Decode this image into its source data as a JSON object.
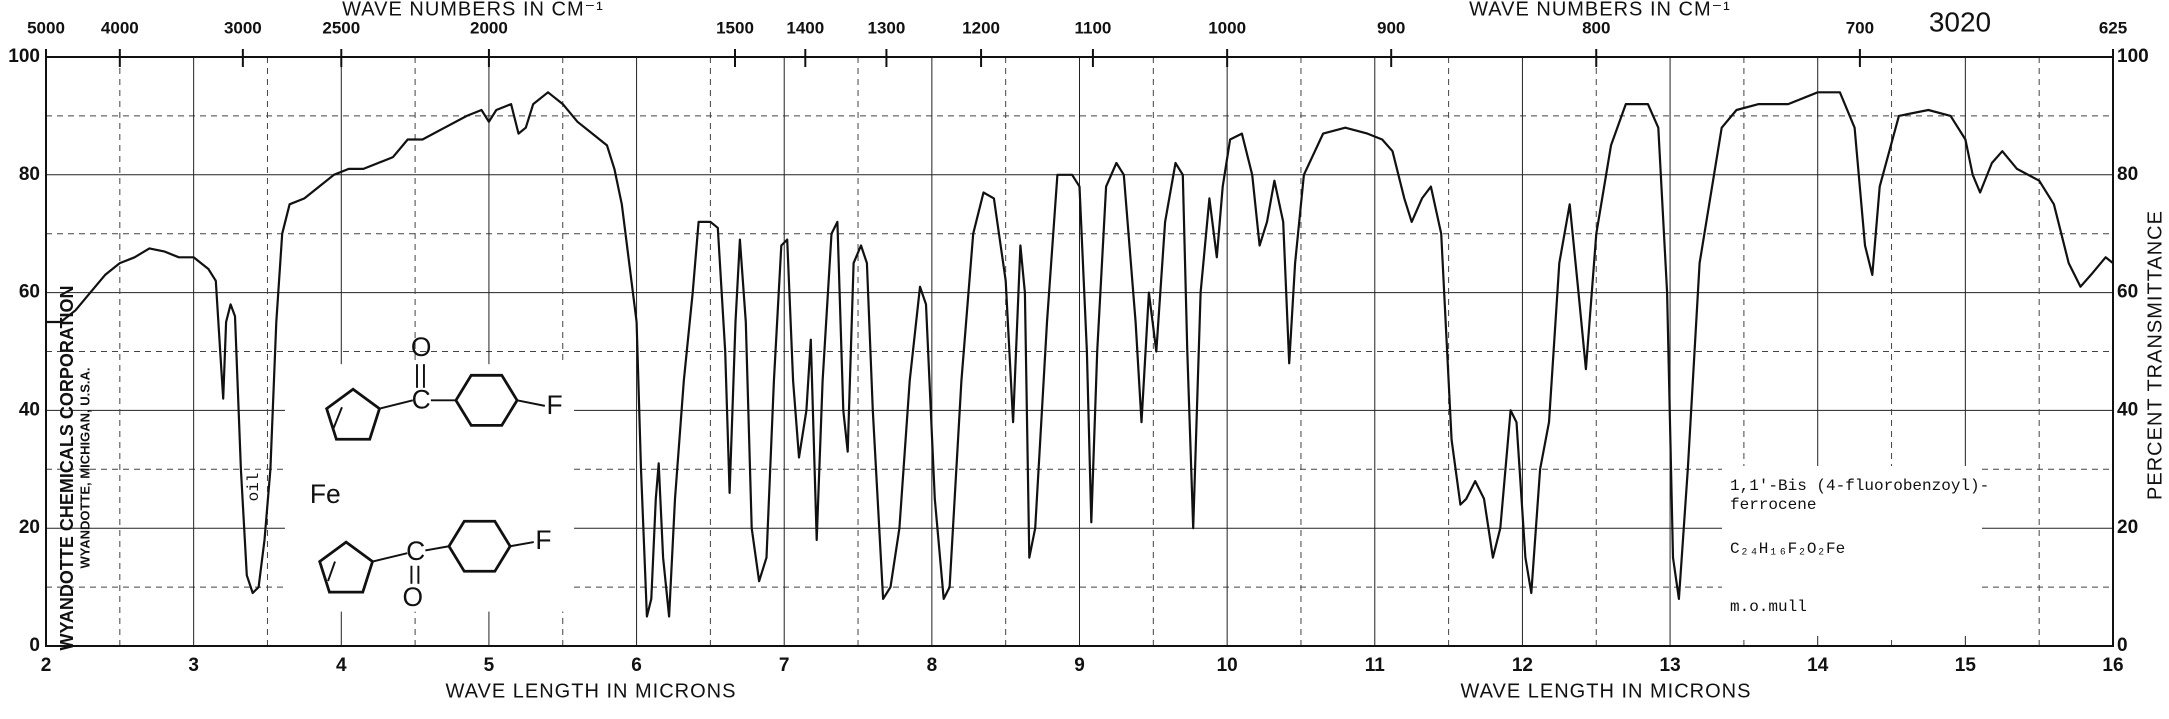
{
  "chart_data": {
    "type": "line",
    "x2label": "WAVE NUMBERS IN CM⁻¹",
    "xlabel": "WAVE LENGTH IN MICRONS",
    "ylabel": "PERCENT TRANSMITTANCE",
    "chart_number": "3020",
    "manufacturer": "WYANDOTTE CHEMICALS CORPORATION",
    "location": "WYANDOTTE, MICHIGAN, U.S.A.",
    "note": "oil",
    "compound": [
      "1,1'-Bis (4-fluorobenzoyl)-",
      "ferrocene"
    ],
    "formula": "C₂₄H₁₆F₂O₂Fe",
    "method": "m.o.mull",
    "structure": {
      "metal": "Fe",
      "oxygen": "O",
      "carbon": "C",
      "fluorine": "F"
    },
    "xlim": [
      2,
      16
    ],
    "xticks": [
      2,
      3,
      4,
      5,
      6,
      7,
      8,
      9,
      10,
      11,
      12,
      13,
      14,
      15,
      16
    ],
    "xgrid_minor": [
      2.5,
      3.5,
      4.5,
      5.5,
      6.5,
      7.5,
      8.5,
      9.5,
      10.5,
      11.5,
      12.5,
      13.5,
      14.5,
      15.5
    ],
    "x2ticks": [
      5000,
      4000,
      3000,
      2500,
      2000,
      1500,
      1400,
      1300,
      1200,
      1100,
      1000,
      900,
      800,
      700,
      625
    ],
    "ylim": [
      0,
      100
    ],
    "yticks": [
      0,
      20,
      40,
      60,
      80,
      100
    ],
    "ygrid_minor": [
      10,
      30,
      50,
      70,
      90
    ],
    "grid": true,
    "x": [
      2.0,
      2.1,
      2.2,
      2.3,
      2.4,
      2.5,
      2.6,
      2.7,
      2.8,
      2.9,
      3.0,
      3.1,
      3.15,
      3.18,
      3.2,
      3.22,
      3.25,
      3.28,
      3.32,
      3.36,
      3.4,
      3.44,
      3.48,
      3.52,
      3.56,
      3.6,
      3.65,
      3.75,
      3.85,
      3.95,
      4.05,
      4.15,
      4.25,
      4.35,
      4.45,
      4.55,
      4.7,
      4.85,
      4.95,
      5.0,
      5.05,
      5.15,
      5.2,
      5.25,
      5.3,
      5.4,
      5.5,
      5.6,
      5.7,
      5.8,
      5.85,
      5.9,
      5.95,
      6.0,
      6.03,
      6.07,
      6.1,
      6.13,
      6.15,
      6.18,
      6.22,
      6.26,
      6.32,
      6.38,
      6.42,
      6.5,
      6.55,
      6.6,
      6.63,
      6.67,
      6.7,
      6.74,
      6.78,
      6.83,
      6.88,
      6.93,
      6.98,
      7.02,
      7.06,
      7.1,
      7.15,
      7.18,
      7.22,
      7.26,
      7.32,
      7.36,
      7.4,
      7.43,
      7.47,
      7.52,
      7.56,
      7.6,
      7.67,
      7.72,
      7.78,
      7.85,
      7.92,
      7.96,
      8.02,
      8.08,
      8.12,
      8.2,
      8.28,
      8.35,
      8.42,
      8.5,
      8.55,
      8.6,
      8.63,
      8.66,
      8.7,
      8.78,
      8.85,
      8.95,
      9.0,
      9.05,
      9.08,
      9.12,
      9.18,
      9.25,
      9.3,
      9.38,
      9.42,
      9.47,
      9.52,
      9.58,
      9.65,
      9.7,
      9.73,
      9.77,
      9.82,
      9.88,
      9.93,
      9.97,
      10.02,
      10.1,
      10.17,
      10.22,
      10.27,
      10.32,
      10.38,
      10.42,
      10.46,
      10.52,
      10.65,
      10.8,
      10.95,
      11.05,
      11.12,
      11.2,
      11.25,
      11.32,
      11.38,
      11.45,
      11.52,
      11.58,
      11.62,
      11.68,
      11.74,
      11.8,
      11.85,
      11.92,
      11.96,
      12.02,
      12.06,
      12.12,
      12.18,
      12.25,
      12.32,
      12.38,
      12.43,
      12.5,
      12.6,
      12.7,
      12.85,
      12.92,
      12.98,
      13.02,
      13.06,
      13.12,
      13.2,
      13.35,
      13.45,
      13.6,
      13.8,
      14.0,
      14.15,
      14.25,
      14.32,
      14.37,
      14.42,
      14.55,
      14.75,
      14.9,
      15.0,
      15.05,
      15.1,
      15.18,
      15.25,
      15.35,
      15.5,
      15.6,
      15.7,
      15.78,
      15.85,
      15.95,
      16.0
    ],
    "series": [
      {
        "color": "#111111",
        "values": [
          55,
          55,
          57,
          60,
          63,
          65,
          66,
          67.5,
          67,
          66,
          66,
          64,
          62,
          50,
          42,
          55,
          58,
          56,
          30,
          12,
          9,
          10,
          18,
          30,
          55,
          70,
          75,
          76,
          78,
          80,
          81,
          81,
          82,
          83,
          86,
          86,
          88,
          90,
          91,
          89,
          91,
          92,
          87,
          88,
          92,
          94,
          92,
          89,
          87,
          85,
          81,
          75,
          65,
          55,
          30,
          5,
          8,
          25,
          31,
          15,
          5,
          25,
          45,
          60,
          72,
          72,
          71,
          50,
          26,
          55,
          69,
          55,
          20,
          11,
          15,
          45,
          68,
          69,
          45,
          32,
          40,
          52,
          18,
          45,
          70,
          72,
          40,
          33,
          65,
          68,
          65,
          40,
          8,
          10,
          20,
          45,
          61,
          58,
          25,
          8,
          10,
          45,
          70,
          77,
          76,
          62,
          38,
          68,
          60,
          15,
          20,
          55,
          80,
          80,
          78,
          50,
          21,
          50,
          78,
          82,
          80,
          55,
          38,
          60,
          50,
          72,
          82,
          80,
          50,
          20,
          60,
          76,
          66,
          78,
          86,
          87,
          80,
          68,
          72,
          79,
          72,
          48,
          65,
          80,
          87,
          88,
          87,
          86,
          84,
          76,
          72,
          76,
          78,
          70,
          35,
          24,
          25,
          28,
          25,
          15,
          20,
          40,
          38,
          15,
          9,
          30,
          38,
          65,
          75,
          60,
          47,
          70,
          85,
          92,
          92,
          88,
          60,
          15,
          8,
          30,
          65,
          88,
          91,
          92,
          92,
          94,
          94,
          88,
          68,
          63,
          78,
          90,
          91,
          90,
          86,
          80,
          77,
          82,
          84,
          81,
          79,
          75,
          65,
          61,
          63,
          66,
          65
        ]
      }
    ]
  }
}
